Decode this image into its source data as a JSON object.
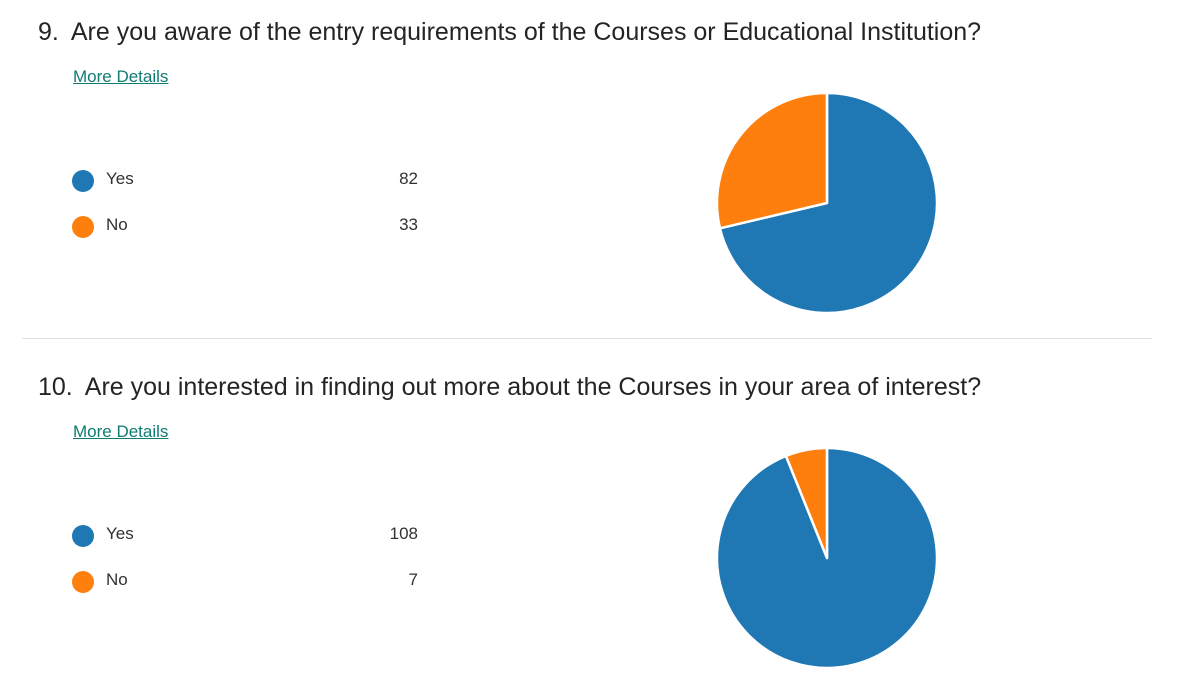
{
  "colors": {
    "yes": "#1f77b4",
    "no": "#ff7f0e",
    "link": "#0f7b72"
  },
  "chart_data": [
    {
      "type": "pie",
      "number": "9.",
      "title": "Are you aware of the entry requirements of the Courses or Educational Institution?",
      "link_label": "More Details",
      "categories": [
        "Yes",
        "No"
      ],
      "values": [
        82,
        33
      ],
      "colors": [
        "#1f77b4",
        "#ff7f0e"
      ]
    },
    {
      "type": "pie",
      "number": "10.",
      "title": "Are you interested in finding out more about the Courses in your area of interest?",
      "link_label": "More Details",
      "categories": [
        "Yes",
        "No"
      ],
      "values": [
        108,
        7
      ],
      "colors": [
        "#1f77b4",
        "#ff7f0e"
      ]
    }
  ]
}
